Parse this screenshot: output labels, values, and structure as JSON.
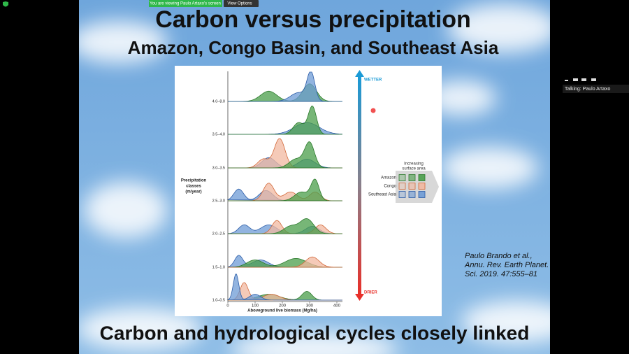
{
  "zoom": {
    "banner": "You are viewing Paulo Artaxo's screen",
    "view_options": "View Options",
    "talking": "Talking: Paulo Artaxo"
  },
  "slide": {
    "title": "Carbon versus precipitation",
    "subtitle": "Amazon, Congo Basin, and Southeast Asia",
    "footer": "Carbon and hydrological cycles closely linked",
    "citation": [
      "Paulo Brando et al.,",
      "Annu. Rev. Earth Planet.",
      "Sci. 2019. 47:555–81"
    ]
  },
  "figure": {
    "y_axis_title": [
      "Precipitation",
      "classes",
      "(m/year)"
    ],
    "y_labels": [
      "4.0–8.0",
      "3.5–4.0",
      "3.0–3.5",
      "2.5–3.0",
      "2.0–2.5",
      "1.5–1.0",
      "1.0–0.5"
    ],
    "x_ticks": [
      0,
      100,
      200,
      300,
      400
    ],
    "x_axis_title": "Aboveground live biomass (Mg/ha)",
    "wetter": "WETTER",
    "drier": "DRIER",
    "legend_title": [
      "Increasing",
      "surface area"
    ],
    "legend": [
      "Amazon",
      "Congo",
      "Southeast Asia"
    ]
  }
}
